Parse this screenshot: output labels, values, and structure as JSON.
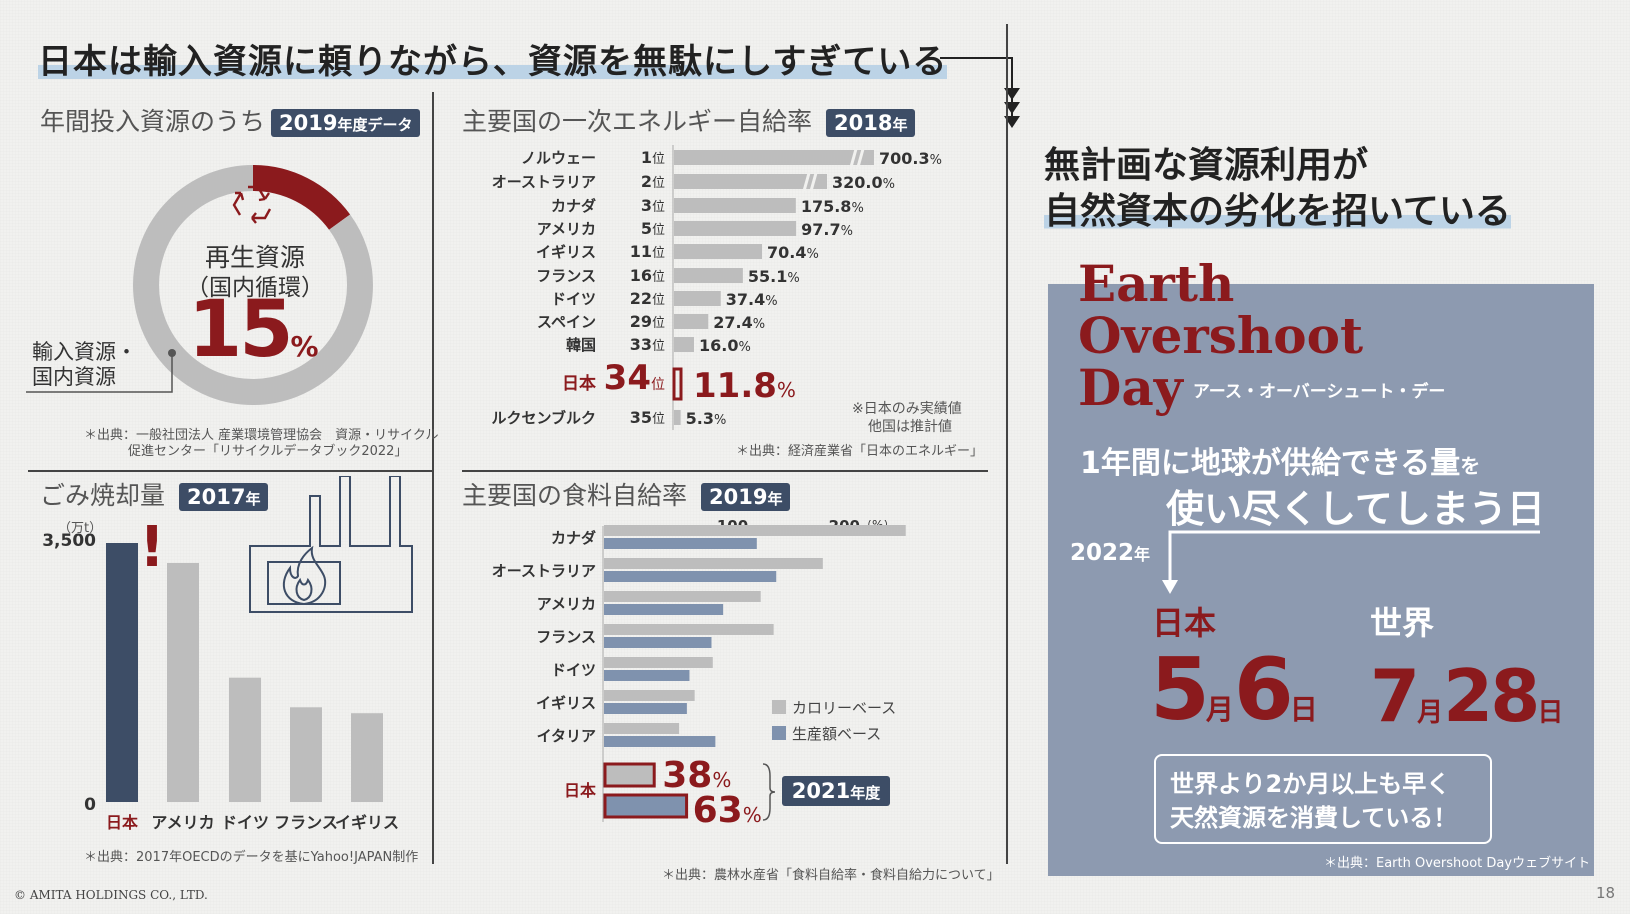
{
  "main_title": "日本は輸入資源に頼りながら、資源を無駄にしすぎている",
  "colors": {
    "dark_red": "#8b1a1d",
    "navy": "#3d4d66",
    "gray_bar": "#bdbdbd",
    "blue_bar": "#7f92ae",
    "panel": "#8d9ab0"
  },
  "recycle": {
    "title": "年間投入資源のうち",
    "tag": "2019",
    "tag_small": "年度データ",
    "label1": "再生資源",
    "label2": "（国内循環）",
    "value": "15",
    "unit": "%",
    "other_label1": "輸入資源・",
    "other_label2": "国内資源",
    "source1": "＊出典：一般社団法人 産業環境管理協会　資源・リサイクル",
    "source2": "促進センター「リサイクルデータブック2022」",
    "icon": "recycle-icon"
  },
  "energy": {
    "title": "主要国の一次エネルギー自給率",
    "tag": "2018",
    "tag_small": "年",
    "note1": "※日本のみ実績値",
    "note2": "他国は推計値",
    "source": "＊出典：経済産業省「日本のエネルギー」",
    "rank_suffix": "位",
    "unit": "%"
  },
  "incineration": {
    "title": "ごみ焼却量",
    "tag": "2017",
    "tag_small": "年",
    "unit_label": "（万t）",
    "y_top": "3,500",
    "y_zero": "0",
    "exclaim": "!",
    "source": "＊出典：2017年OECDのデータを基にYahoo!JAPAN制作",
    "icon": "factory-fire-icon"
  },
  "food": {
    "title": "主要国の食料自給率",
    "tag": "2019",
    "tag_small": "年",
    "tick100": "100",
    "tick200": "200",
    "tick_unit": "（%）",
    "legend_calorie": "カロリーベース",
    "legend_production": "生産額ベース",
    "japan_label": "日本",
    "japan_calorie": "38",
    "japan_production": "63",
    "unit": "%",
    "japan_tag": "2021",
    "japan_tag_small": "年度",
    "source": "＊出典：農林水産省「食料自給率・食料自給力について」"
  },
  "right": {
    "heading1": "無計画な資源利用が",
    "heading2": "自然資本の劣化を招いている",
    "eod1": "Earth",
    "eod2": "Overshoot",
    "eod3": "Day",
    "eod_kana": "アース・オーバーシュート・デー",
    "desc1_a": "1年間に地球が供給できる量",
    "desc1_b": "を",
    "desc2": "使い尽くしてしまう日",
    "year": "2022",
    "year_suffix": "年",
    "japan_label": "日本",
    "world_label": "世界",
    "japan_month": "5",
    "japan_day": "6",
    "world_month": "7",
    "world_day": "28",
    "month_char": "月",
    "day_char": "日",
    "box1": "世界より2か月以上も早く",
    "box2": "天然資源を消費している！",
    "source": "＊出典：Earth Overshoot Dayウェブサイト"
  },
  "footer": {
    "copyright": "© AMITA HOLDINGS CO., LTD.",
    "page": "18"
  },
  "chart_data": [
    {
      "type": "pie",
      "title": "年間投入資源のうち",
      "slices": [
        {
          "label": "再生資源（国内循環）",
          "value": 15
        },
        {
          "label": "輸入資源・国内資源",
          "value": 85
        }
      ],
      "unit": "%"
    },
    {
      "type": "bar",
      "orientation": "horizontal",
      "title": "主要国の一次エネルギー自給率",
      "categories": [
        "ノルウェー",
        "オーストラリア",
        "カナダ",
        "アメリカ",
        "イギリス",
        "フランス",
        "ドイツ",
        "スペイン",
        "韓国",
        "日本",
        "ルクセンブルク"
      ],
      "ranks": [
        "1",
        "2",
        "3",
        "5",
        "11",
        "16",
        "22",
        "29",
        "33",
        "34",
        "35"
      ],
      "values": [
        700.3,
        320.0,
        175.8,
        97.7,
        70.4,
        55.1,
        37.4,
        27.4,
        16.0,
        11.8,
        5.3
      ],
      "value_labels": [
        "700.3",
        "320.0",
        "175.8",
        "97.7",
        "70.4",
        "55.1",
        "37.4",
        "27.4",
        "16.0",
        "11.8",
        "5.3"
      ],
      "broken_axis": [
        true,
        true,
        false,
        false,
        false,
        false,
        false,
        false,
        false,
        false,
        false
      ],
      "highlight": "日本",
      "unit": "%"
    },
    {
      "type": "bar",
      "orientation": "vertical",
      "title": "ごみ焼却量",
      "categories": [
        "日本",
        "アメリカ",
        "ドイツ",
        "フランス",
        "イギリス"
      ],
      "values": [
        3500,
        3230,
        1680,
        1280,
        1200
      ],
      "ylim": [
        0,
        3500
      ],
      "ylabel": "（万t）",
      "highlight": "日本"
    },
    {
      "type": "bar",
      "orientation": "horizontal",
      "title": "主要国の食料自給率",
      "categories": [
        "カナダ",
        "オーストラリア",
        "アメリカ",
        "フランス",
        "ドイツ",
        "イギリス",
        "イタリア",
        "日本"
      ],
      "series": [
        {
          "name": "カロリーベース",
          "values": [
            233,
            169,
            121,
            131,
            84,
            70,
            58,
            38
          ]
        },
        {
          "name": "生産額ベース",
          "values": [
            118,
            133,
            92,
            83,
            66,
            64,
            86,
            63
          ]
        }
      ],
      "xticks": [
        100,
        200
      ],
      "xlim": [
        0,
        233
      ],
      "unit": "%"
    }
  ]
}
